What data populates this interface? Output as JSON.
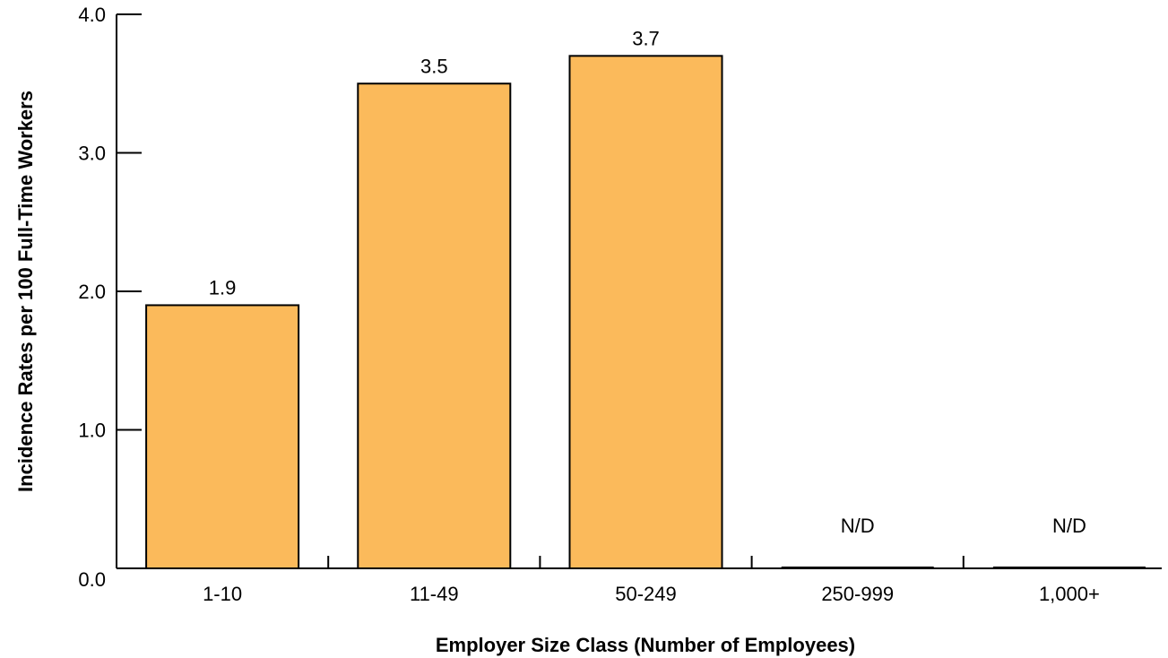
{
  "chart_data": {
    "type": "bar",
    "title": "",
    "xlabel": "Employer Size Class (Number of Employees)",
    "ylabel": "Incidence Rates per 100 Full-Time Workers",
    "categories": [
      "1-10",
      "11-49",
      "50-249",
      "250-999",
      "1,000+"
    ],
    "values": [
      1.9,
      3.5,
      3.7,
      null,
      null
    ],
    "value_labels": [
      "1.9",
      "3.5",
      "3.7",
      "N/D",
      "N/D"
    ],
    "ylim": [
      0,
      4.0
    ],
    "yticks": [
      "0.0",
      "1.0",
      "2.0",
      "3.0",
      "4.0"
    ],
    "grid": false,
    "legend": "none",
    "bar_color": "#FBBA5B",
    "bar_stroke": "#000000"
  }
}
